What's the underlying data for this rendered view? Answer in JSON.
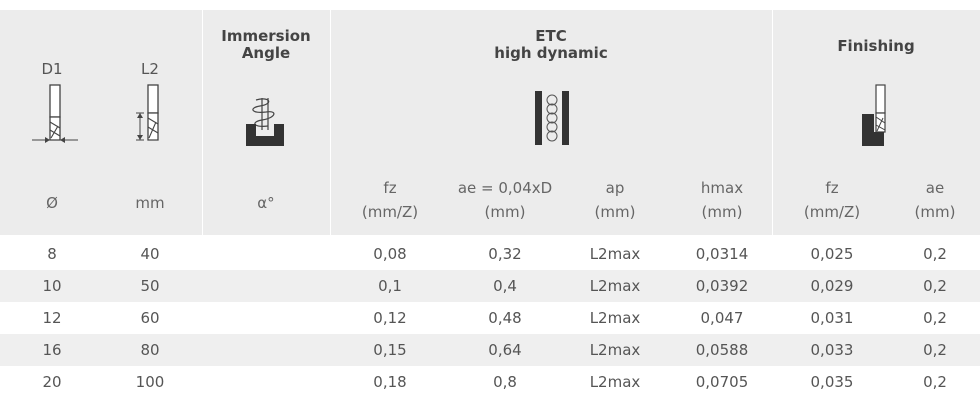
{
  "header": {
    "d1": {
      "title": "D1",
      "unit": "Ø"
    },
    "l2": {
      "title": "L2",
      "unit": "mm"
    },
    "immersion": {
      "title_line1": "Immersion",
      "title_line2": "Angle",
      "unit": "α°"
    },
    "etc": {
      "title_line1": "ETC",
      "title_line2": "high dynamic",
      "cols": [
        {
          "label": "fz",
          "unit": "(mm/Z)"
        },
        {
          "label": "ae = 0,04xD",
          "unit": "(mm)"
        },
        {
          "label": "ap",
          "unit": "(mm)"
        },
        {
          "label": "hmax",
          "unit": "(mm)"
        }
      ]
    },
    "finishing": {
      "title": "Finishing",
      "cols": [
        {
          "label": "fz",
          "unit": "(mm/Z)"
        },
        {
          "label": "ae",
          "unit": "(mm)"
        }
      ]
    }
  },
  "rows": [
    {
      "d1": "8",
      "l2": "40",
      "immersion": "",
      "fz": "0,08",
      "ae": "0,32",
      "ap": "L2max",
      "hmax": "0,0314",
      "fin_fz": "0,025",
      "fin_ae": "0,2"
    },
    {
      "d1": "10",
      "l2": "50",
      "immersion": "",
      "fz": "0,1",
      "ae": "0,4",
      "ap": "L2max",
      "hmax": "0,0392",
      "fin_fz": "0,029",
      "fin_ae": "0,2"
    },
    {
      "d1": "12",
      "l2": "60",
      "immersion": "",
      "fz": "0,12",
      "ae": "0,48",
      "ap": "L2max",
      "hmax": "0,047",
      "fin_fz": "0,031",
      "fin_ae": "0,2"
    },
    {
      "d1": "16",
      "l2": "80",
      "immersion": "",
      "fz": "0,15",
      "ae": "0,64",
      "ap": "L2max",
      "hmax": "0,0588",
      "fin_fz": "0,033",
      "fin_ae": "0,2"
    },
    {
      "d1": "20",
      "l2": "100",
      "immersion": "",
      "fz": "0,18",
      "ae": "0,8",
      "ap": "L2max",
      "hmax": "0,0705",
      "fin_fz": "0,035",
      "fin_ae": "0,2"
    }
  ],
  "icons": [
    "end-mill-diameter-icon",
    "end-mill-length-icon",
    "immersion-angle-icon",
    "etc-dynamic-milling-icon",
    "finishing-icon"
  ]
}
